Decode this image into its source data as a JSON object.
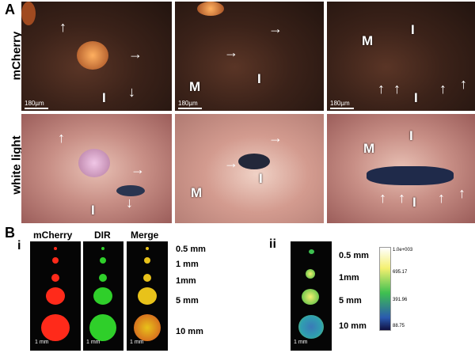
{
  "panel_a": {
    "letter": "A",
    "row_labels": [
      "mCherry",
      "white light"
    ],
    "scale_bar": "180µm",
    "tags": {
      "m": "M",
      "i": "I"
    }
  },
  "panel_b": {
    "letter": "B",
    "sub_i": "i",
    "sub_ii": "ii",
    "col_headers": [
      "mCherry",
      "DIR",
      "Merge"
    ],
    "sizes_i": [
      "0.5 mm",
      "1 mm",
      "1mm",
      "5 mm",
      "10 mm"
    ],
    "sizes_ii": [
      "0.5 mm",
      "1mm",
      "5 mm",
      "10 mm"
    ],
    "scale_bar": "1 mm",
    "colorbar": [
      "1.0e+003",
      "695.17",
      "391.96",
      "88.75"
    ],
    "colors": {
      "mcherry": "#ff2a1a",
      "dir": "#2fcf2a",
      "merge": "#e8c21a"
    }
  }
}
